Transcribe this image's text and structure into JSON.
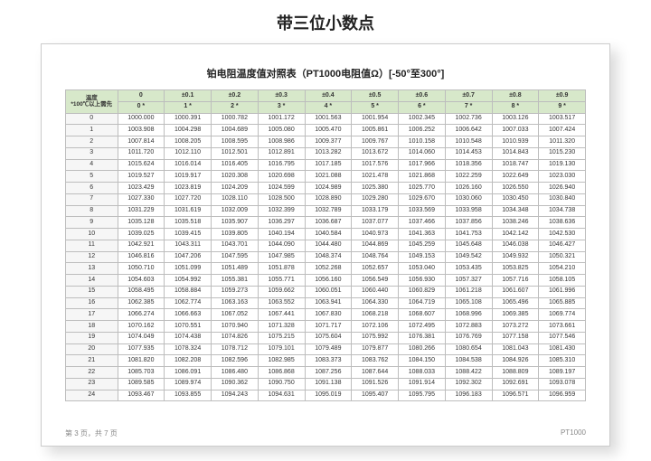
{
  "heading": "带三位小数点",
  "table_title": "铂电阻温度值对照表（PT1000电阻值Ω）[-50°至300°]",
  "corner_top": "温度",
  "corner_bottom": "*100℃以上需先",
  "header_top": [
    "0",
    "±0.1",
    "±0.2",
    "±0.3",
    "±0.4",
    "±0.5",
    "±0.6",
    "±0.7",
    "±0.8",
    "±0.9"
  ],
  "header_bottom": [
    "0 *",
    "1 *",
    "2 *",
    "3 *",
    "4 *",
    "5 *",
    "6 *",
    "7 *",
    "8 *",
    "9 *"
  ],
  "rows": [
    {
      "t": "0",
      "v": [
        "1000.000",
        "1000.391",
        "1000.782",
        "1001.172",
        "1001.563",
        "1001.954",
        "1002.345",
        "1002.736",
        "1003.126",
        "1003.517"
      ]
    },
    {
      "t": "1",
      "v": [
        "1003.908",
        "1004.298",
        "1004.689",
        "1005.080",
        "1005.470",
        "1005.861",
        "1006.252",
        "1006.642",
        "1007.033",
        "1007.424"
      ]
    },
    {
      "t": "2",
      "v": [
        "1007.814",
        "1008.205",
        "1008.595",
        "1008.986",
        "1009.377",
        "1009.767",
        "1010.158",
        "1010.548",
        "1010.939",
        "1011.320"
      ]
    },
    {
      "t": "3",
      "v": [
        "1011.720",
        "1012.110",
        "1012.501",
        "1012.891",
        "1013.282",
        "1013.672",
        "1014.060",
        "1014.453",
        "1014.843",
        "1015.230"
      ]
    },
    {
      "t": "4",
      "v": [
        "1015.624",
        "1016.014",
        "1016.405",
        "1016.795",
        "1017.185",
        "1017.576",
        "1017.966",
        "1018.356",
        "1018.747",
        "1019.130"
      ]
    },
    {
      "t": "5",
      "v": [
        "1019.527",
        "1019.917",
        "1020.308",
        "1020.698",
        "1021.088",
        "1021.478",
        "1021.868",
        "1022.259",
        "1022.649",
        "1023.030"
      ]
    },
    {
      "t": "6",
      "v": [
        "1023.429",
        "1023.819",
        "1024.209",
        "1024.599",
        "1024.989",
        "1025.380",
        "1025.770",
        "1026.160",
        "1026.550",
        "1026.940"
      ]
    },
    {
      "t": "7",
      "v": [
        "1027.330",
        "1027.720",
        "1028.110",
        "1028.500",
        "1028.890",
        "1029.280",
        "1029.670",
        "1030.060",
        "1030.450",
        "1030.840"
      ]
    },
    {
      "t": "8",
      "v": [
        "1031.229",
        "1031.619",
        "1032.009",
        "1032.399",
        "1032.789",
        "1033.179",
        "1033.569",
        "1033.958",
        "1034.348",
        "1034.738"
      ]
    },
    {
      "t": "9",
      "v": [
        "1035.128",
        "1035.518",
        "1035.907",
        "1036.297",
        "1036.687",
        "1037.077",
        "1037.466",
        "1037.856",
        "1038.246",
        "1038.636"
      ]
    },
    {
      "t": "10",
      "v": [
        "1039.025",
        "1039.415",
        "1039.805",
        "1040.194",
        "1040.584",
        "1040.973",
        "1041.363",
        "1041.753",
        "1042.142",
        "1042.530"
      ]
    },
    {
      "t": "11",
      "v": [
        "1042.921",
        "1043.311",
        "1043.701",
        "1044.090",
        "1044.480",
        "1044.869",
        "1045.259",
        "1045.648",
        "1046.038",
        "1046.427"
      ]
    },
    {
      "t": "12",
      "v": [
        "1046.816",
        "1047.206",
        "1047.595",
        "1047.985",
        "1048.374",
        "1048.764",
        "1049.153",
        "1049.542",
        "1049.932",
        "1050.321"
      ]
    },
    {
      "t": "13",
      "v": [
        "1050.710",
        "1051.099",
        "1051.489",
        "1051.878",
        "1052.268",
        "1052.657",
        "1053.040",
        "1053.435",
        "1053.825",
        "1054.210"
      ]
    },
    {
      "t": "14",
      "v": [
        "1054.603",
        "1054.992",
        "1055.381",
        "1055.771",
        "1056.160",
        "1056.549",
        "1056.930",
        "1057.327",
        "1057.716",
        "1058.105"
      ]
    },
    {
      "t": "15",
      "v": [
        "1058.495",
        "1058.884",
        "1059.273",
        "1059.662",
        "1060.051",
        "1060.440",
        "1060.829",
        "1061.218",
        "1061.607",
        "1061.996"
      ]
    },
    {
      "t": "16",
      "v": [
        "1062.385",
        "1062.774",
        "1063.163",
        "1063.552",
        "1063.941",
        "1064.330",
        "1064.719",
        "1065.108",
        "1065.496",
        "1065.885"
      ]
    },
    {
      "t": "17",
      "v": [
        "1066.274",
        "1066.663",
        "1067.052",
        "1067.441",
        "1067.830",
        "1068.218",
        "1068.607",
        "1068.996",
        "1069.385",
        "1069.774"
      ]
    },
    {
      "t": "18",
      "v": [
        "1070.162",
        "1070.551",
        "1070.940",
        "1071.328",
        "1071.717",
        "1072.106",
        "1072.495",
        "1072.883",
        "1073.272",
        "1073.661"
      ]
    },
    {
      "t": "19",
      "v": [
        "1074.049",
        "1074.438",
        "1074.826",
        "1075.215",
        "1075.604",
        "1075.992",
        "1076.381",
        "1076.769",
        "1077.158",
        "1077.546"
      ]
    },
    {
      "t": "20",
      "v": [
        "1077.935",
        "1078.324",
        "1078.712",
        "1079.101",
        "1079.489",
        "1079.877",
        "1080.266",
        "1080.654",
        "1081.043",
        "1081.430"
      ]
    },
    {
      "t": "21",
      "v": [
        "1081.820",
        "1082.208",
        "1082.596",
        "1082.985",
        "1083.373",
        "1083.762",
        "1084.150",
        "1084.538",
        "1084.926",
        "1085.310"
      ]
    },
    {
      "t": "22",
      "v": [
        "1085.703",
        "1086.091",
        "1086.480",
        "1086.868",
        "1087.256",
        "1087.644",
        "1088.033",
        "1088.422",
        "1088.809",
        "1089.197"
      ]
    },
    {
      "t": "23",
      "v": [
        "1089.585",
        "1089.974",
        "1090.362",
        "1090.750",
        "1091.138",
        "1091.526",
        "1091.914",
        "1092.302",
        "1092.691",
        "1093.078"
      ]
    },
    {
      "t": "24",
      "v": [
        "1093.467",
        "1093.855",
        "1094.243",
        "1094.631",
        "1095.019",
        "1095.407",
        "1095.795",
        "1096.183",
        "1096.571",
        "1096.959"
      ]
    }
  ],
  "footer_left": "第 3 页，共 7 页",
  "footer_right": "PT1000",
  "colors": {
    "header_bg": "#d7e8ca",
    "border": "#bdbdbd",
    "leftcol_bg": "#f6f6f6"
  }
}
